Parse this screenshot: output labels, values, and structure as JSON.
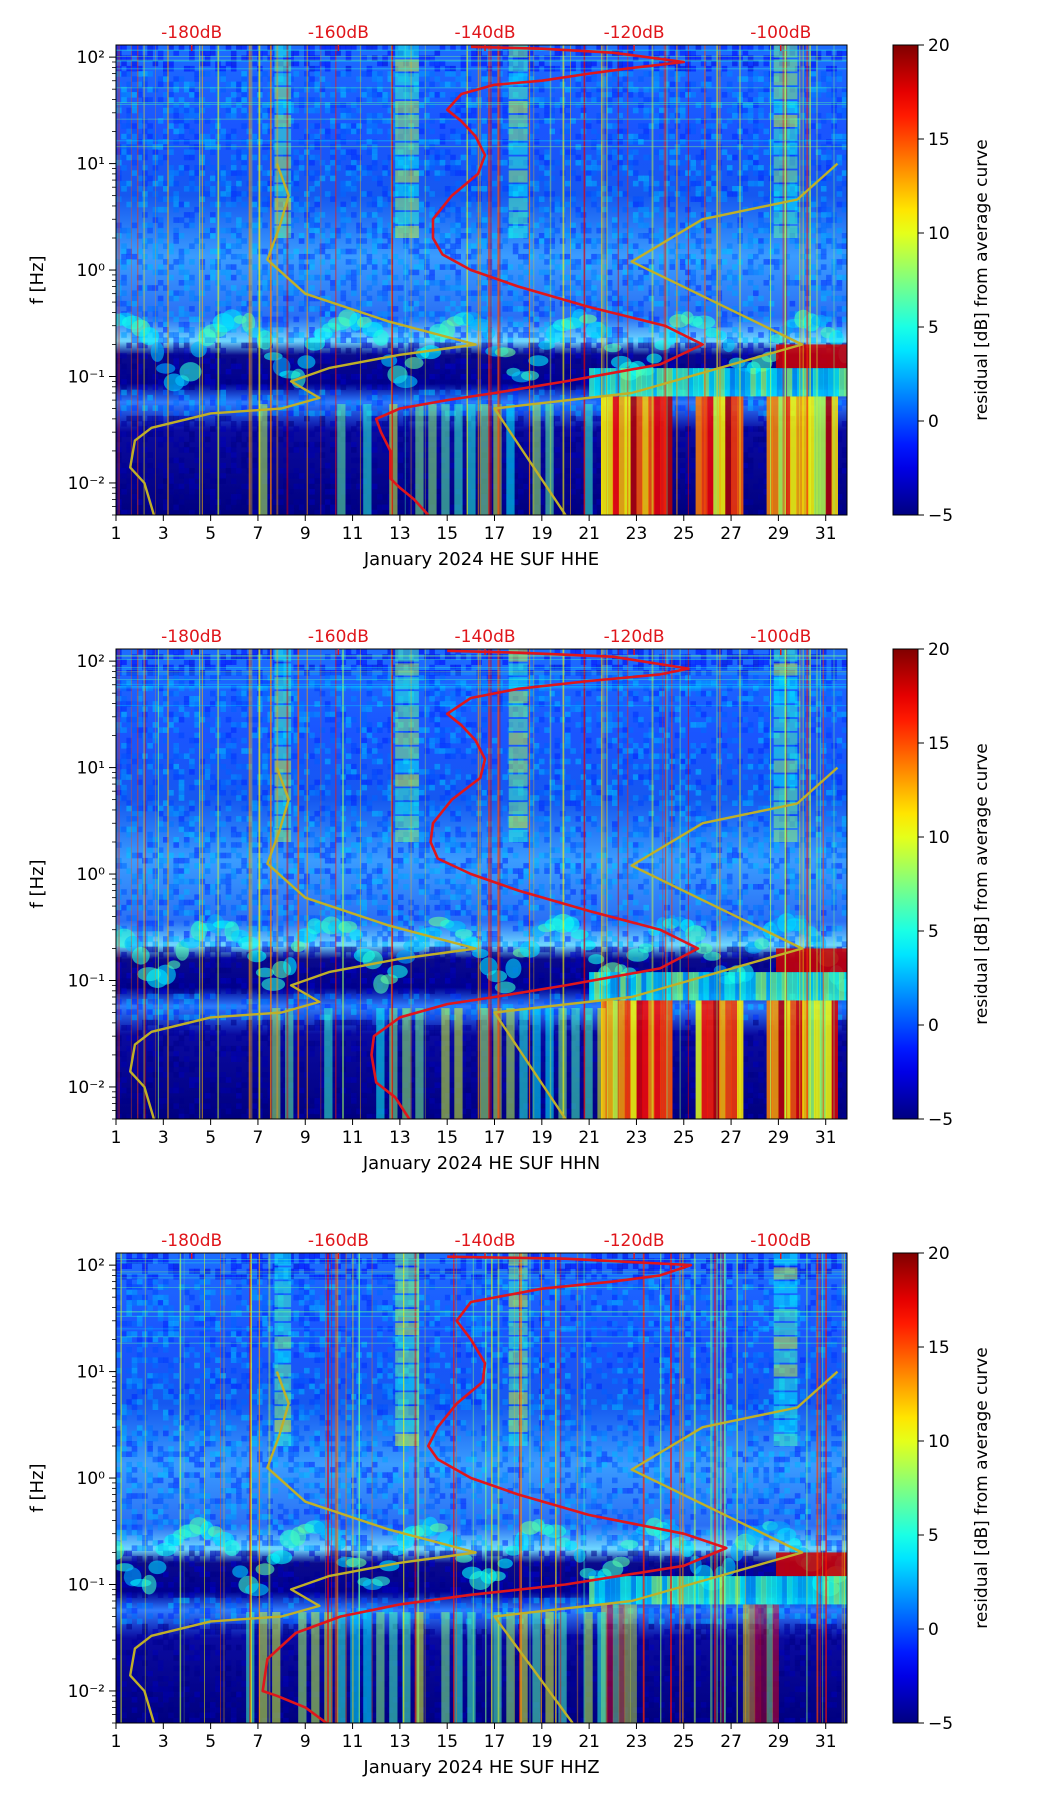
{
  "figure": {
    "panels": [
      {
        "channel": "HHE",
        "xlabel": "January 2024 HE SUF  HHE"
      },
      {
        "channel": "HHN",
        "xlabel": "January 2024 HE SUF  HHN"
      },
      {
        "channel": "HHZ",
        "xlabel": "January 2024 HE SUF  HHZ"
      }
    ],
    "ylabel": "f [Hz]",
    "colorbar_label": "residual [dB] from average curve",
    "colormap": "jet",
    "curve_colors": {
      "psd_median": "#e0161b",
      "noise_model": "#c0b028"
    }
  },
  "chart_data": [
    {
      "type": "heatmap",
      "title": "",
      "xlabel": "January 2024 HE SUF  HHE",
      "ylabel": "f [Hz]",
      "x_range": [
        1,
        31.9
      ],
      "x_ticks": [
        "1",
        "3",
        "5",
        "7",
        "9",
        "11",
        "13",
        "15",
        "17",
        "19",
        "21",
        "23",
        "25",
        "27",
        "29",
        "31"
      ],
      "y_scale": "log",
      "y_range": [
        0.005,
        130
      ],
      "y_ticks": [
        "10⁻²",
        "10⁻¹",
        "10⁰",
        "10¹",
        "10²"
      ],
      "top_axis": {
        "labels": [
          "-180dB",
          "-160dB",
          "-140dB",
          "-120dB",
          "-100dB"
        ],
        "day_positions": [
          4.2,
          10.4,
          16.6,
          22.9,
          29.1
        ]
      },
      "colorbar": {
        "range": [
          -5,
          20
        ],
        "ticks": [
          "−5",
          "0",
          "5",
          "10",
          "15",
          "20"
        ],
        "label": "residual [dB] from average curve"
      },
      "series": [
        {
          "name": "median PSD",
          "color": "#e0161b",
          "points": [
            [
              14.2,
              0.005
            ],
            [
              13.6,
              0.007
            ],
            [
              13.0,
              0.009
            ],
            [
              12.6,
              0.011
            ],
            [
              12.6,
              0.02
            ],
            [
              12.2,
              0.03
            ],
            [
              12.0,
              0.04
            ],
            [
              13.0,
              0.05
            ],
            [
              15.0,
              0.06
            ],
            [
              17.0,
              0.07
            ],
            [
              20.0,
              0.09
            ],
            [
              24.0,
              0.13
            ],
            [
              25.8,
              0.2
            ],
            [
              24.2,
              0.3
            ],
            [
              21.0,
              0.45
            ],
            [
              18.0,
              0.7
            ],
            [
              16.0,
              1.0
            ],
            [
              14.8,
              1.4
            ],
            [
              14.4,
              2.0
            ],
            [
              14.4,
              3.0
            ],
            [
              15.2,
              5.0
            ],
            [
              16.3,
              8.0
            ],
            [
              16.6,
              12.0
            ],
            [
              16.2,
              18.0
            ],
            [
              15.6,
              25.0
            ],
            [
              15.0,
              32.0
            ],
            [
              15.6,
              45.0
            ],
            [
              17.0,
              55.0
            ],
            [
              19.0,
              60.0
            ],
            [
              21.0,
              70.0
            ],
            [
              23.0,
              80.0
            ],
            [
              25.0,
              90.0
            ],
            [
              22.0,
              110.0
            ],
            [
              19.0,
              120.0
            ],
            [
              16.0,
              125.0
            ]
          ]
        },
        {
          "name": "noise model (low)",
          "color": "#c0b028",
          "points": [
            [
              2.6,
              0.005
            ],
            [
              2.2,
              0.01
            ],
            [
              1.6,
              0.014
            ],
            [
              1.8,
              0.025
            ],
            [
              2.5,
              0.033
            ],
            [
              5.0,
              0.045
            ],
            [
              8.0,
              0.05
            ],
            [
              9.6,
              0.063
            ],
            [
              8.4,
              0.09
            ],
            [
              10.0,
              0.12
            ],
            [
              13.0,
              0.16
            ],
            [
              16.2,
              0.2
            ],
            [
              12.5,
              0.33
            ],
            [
              9.0,
              0.6
            ],
            [
              7.4,
              1.25
            ],
            [
              7.9,
              2.5
            ],
            [
              8.3,
              5.0
            ],
            [
              7.8,
              10.0
            ]
          ]
        },
        {
          "name": "noise model (high)",
          "color": "#c0b028",
          "points": [
            [
              20.0,
              0.005
            ],
            [
              17.0,
              0.05
            ],
            [
              22.8,
              0.07
            ],
            [
              30.0,
              0.2
            ],
            [
              22.8,
              1.2
            ],
            [
              25.8,
              3.0
            ],
            [
              29.8,
              4.6
            ],
            [
              31.5,
              10.0
            ]
          ]
        }
      ]
    },
    {
      "type": "heatmap",
      "title": "",
      "xlabel": "January 2024 HE SUF  HHN",
      "ylabel": "f [Hz]",
      "x_range": [
        1,
        31.9
      ],
      "x_ticks": [
        "1",
        "3",
        "5",
        "7",
        "9",
        "11",
        "13",
        "15",
        "17",
        "19",
        "21",
        "23",
        "25",
        "27",
        "29",
        "31"
      ],
      "y_scale": "log",
      "y_range": [
        0.005,
        130
      ],
      "y_ticks": [
        "10⁻²",
        "10⁻¹",
        "10⁰",
        "10¹",
        "10²"
      ],
      "top_axis": {
        "labels": [
          "-180dB",
          "-160dB",
          "-140dB",
          "-120dB",
          "-100dB"
        ],
        "day_positions": [
          4.2,
          10.4,
          16.6,
          22.9,
          29.1
        ]
      },
      "colorbar": {
        "range": [
          -5,
          20
        ],
        "ticks": [
          "−5",
          "0",
          "5",
          "10",
          "15",
          "20"
        ],
        "label": "residual [dB] from average curve"
      },
      "series": [
        {
          "name": "median PSD",
          "color": "#e0161b",
          "points": [
            [
              13.4,
              0.005
            ],
            [
              12.8,
              0.008
            ],
            [
              12.0,
              0.011
            ],
            [
              11.8,
              0.02
            ],
            [
              11.9,
              0.03
            ],
            [
              13.0,
              0.045
            ],
            [
              15.0,
              0.06
            ],
            [
              17.0,
              0.07
            ],
            [
              20.0,
              0.09
            ],
            [
              24.0,
              0.13
            ],
            [
              25.6,
              0.2
            ],
            [
              24.0,
              0.3
            ],
            [
              21.0,
              0.45
            ],
            [
              18.0,
              0.7
            ],
            [
              16.0,
              1.0
            ],
            [
              14.6,
              1.4
            ],
            [
              14.3,
              2.0
            ],
            [
              14.4,
              3.0
            ],
            [
              15.2,
              5.0
            ],
            [
              16.4,
              8.0
            ],
            [
              16.6,
              12.0
            ],
            [
              16.2,
              18.0
            ],
            [
              15.6,
              25.0
            ],
            [
              15.0,
              32.0
            ],
            [
              16.0,
              45.0
            ],
            [
              18.0,
              55.0
            ],
            [
              21.0,
              65.0
            ],
            [
              24.0,
              75.0
            ],
            [
              25.2,
              85.0
            ],
            [
              22.0,
              110.0
            ],
            [
              18.0,
              120.0
            ],
            [
              15.0,
              125.0
            ]
          ]
        },
        {
          "name": "noise model (low)",
          "color": "#c0b028",
          "points": [
            [
              2.6,
              0.005
            ],
            [
              2.2,
              0.01
            ],
            [
              1.6,
              0.014
            ],
            [
              1.8,
              0.025
            ],
            [
              2.5,
              0.033
            ],
            [
              5.0,
              0.045
            ],
            [
              8.0,
              0.05
            ],
            [
              9.6,
              0.063
            ],
            [
              8.4,
              0.09
            ],
            [
              10.0,
              0.12
            ],
            [
              13.0,
              0.16
            ],
            [
              16.2,
              0.2
            ],
            [
              12.5,
              0.33
            ],
            [
              9.0,
              0.6
            ],
            [
              7.4,
              1.25
            ],
            [
              7.9,
              2.5
            ],
            [
              8.3,
              5.0
            ],
            [
              7.8,
              10.0
            ]
          ]
        },
        {
          "name": "noise model (high)",
          "color": "#c0b028",
          "points": [
            [
              20.0,
              0.005
            ],
            [
              17.0,
              0.05
            ],
            [
              22.8,
              0.07
            ],
            [
              30.0,
              0.2
            ],
            [
              22.8,
              1.2
            ],
            [
              25.8,
              3.0
            ],
            [
              29.8,
              4.6
            ],
            [
              31.5,
              10.0
            ]
          ]
        }
      ]
    },
    {
      "type": "heatmap",
      "title": "",
      "xlabel": "January 2024 HE SUF  HHZ",
      "ylabel": "f [Hz]",
      "x_range": [
        1,
        31.9
      ],
      "x_ticks": [
        "1",
        "3",
        "5",
        "7",
        "9",
        "11",
        "13",
        "15",
        "17",
        "19",
        "21",
        "23",
        "25",
        "27",
        "29",
        "31"
      ],
      "y_scale": "log",
      "y_range": [
        0.005,
        130
      ],
      "y_ticks": [
        "10⁻²",
        "10⁻¹",
        "10⁰",
        "10¹",
        "10²"
      ],
      "top_axis": {
        "labels": [
          "-180dB",
          "-160dB",
          "-140dB",
          "-120dB",
          "-100dB"
        ],
        "day_positions": [
          4.2,
          10.4,
          16.6,
          22.9,
          29.1
        ]
      },
      "colorbar": {
        "range": [
          -5,
          20
        ],
        "ticks": [
          "−5",
          "0",
          "5",
          "10",
          "15",
          "20"
        ],
        "label": "residual [dB] from average curve"
      },
      "series": [
        {
          "name": "median PSD",
          "color": "#e0161b",
          "points": [
            [
              9.9,
              0.005
            ],
            [
              9.0,
              0.007
            ],
            [
              7.8,
              0.009
            ],
            [
              7.2,
              0.01
            ],
            [
              7.4,
              0.02
            ],
            [
              8.6,
              0.035
            ],
            [
              10.5,
              0.05
            ],
            [
              13.0,
              0.065
            ],
            [
              16.0,
              0.08
            ],
            [
              20.0,
              0.1
            ],
            [
              25.0,
              0.15
            ],
            [
              26.8,
              0.22
            ],
            [
              25.0,
              0.3
            ],
            [
              21.0,
              0.45
            ],
            [
              18.0,
              0.7
            ],
            [
              16.0,
              1.0
            ],
            [
              14.6,
              1.5
            ],
            [
              14.2,
              2.0
            ],
            [
              14.6,
              3.0
            ],
            [
              15.4,
              5.0
            ],
            [
              16.5,
              8.0
            ],
            [
              16.6,
              12.0
            ],
            [
              16.0,
              20.0
            ],
            [
              15.4,
              30.0
            ],
            [
              16.0,
              45.0
            ],
            [
              19.0,
              60.0
            ],
            [
              22.0,
              70.0
            ],
            [
              24.0,
              80.0
            ],
            [
              25.3,
              100.0
            ],
            [
              20.0,
              115.0
            ],
            [
              15.0,
              120.0
            ]
          ]
        },
        {
          "name": "noise model (low)",
          "color": "#c0b028",
          "points": [
            [
              2.6,
              0.005
            ],
            [
              2.2,
              0.01
            ],
            [
              1.6,
              0.014
            ],
            [
              1.8,
              0.025
            ],
            [
              2.5,
              0.033
            ],
            [
              5.0,
              0.045
            ],
            [
              8.0,
              0.05
            ],
            [
              9.6,
              0.063
            ],
            [
              8.4,
              0.09
            ],
            [
              10.0,
              0.12
            ],
            [
              13.0,
              0.16
            ],
            [
              16.2,
              0.2
            ],
            [
              12.5,
              0.33
            ],
            [
              9.0,
              0.6
            ],
            [
              7.4,
              1.25
            ],
            [
              7.9,
              2.5
            ],
            [
              8.3,
              5.0
            ],
            [
              7.8,
              10.0
            ]
          ]
        },
        {
          "name": "noise model (high)",
          "color": "#c0b028",
          "points": [
            [
              20.3,
              0.005
            ],
            [
              17.0,
              0.05
            ],
            [
              22.8,
              0.07
            ],
            [
              30.0,
              0.2
            ],
            [
              22.8,
              1.2
            ],
            [
              25.8,
              3.0
            ],
            [
              29.8,
              4.6
            ],
            [
              31.5,
              10.0
            ]
          ]
        }
      ]
    }
  ]
}
